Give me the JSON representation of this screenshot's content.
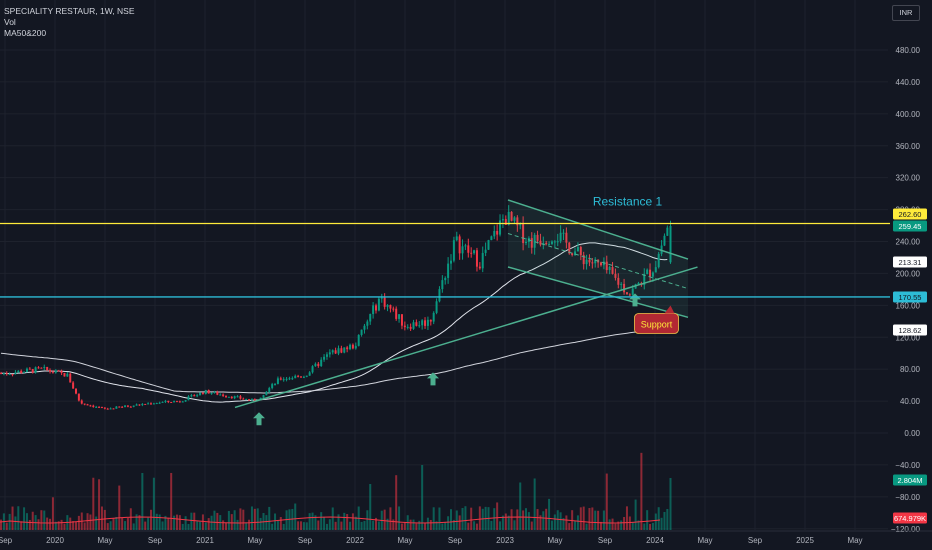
{
  "header": {
    "symbol_line": "SPECIALITY RESTAUR, 1W, NSE",
    "vol_label": "Vol",
    "ma_label": "MA50&200",
    "currency": "INR"
  },
  "chart_data": {
    "type": "candlestick",
    "price_axis": {
      "ticks": [
        "480.00",
        "440.00",
        "400.00",
        "360.00",
        "320.00",
        "280.00",
        "240.00",
        "200.00",
        "160.00",
        "120.00",
        "80.00",
        "40.00",
        "0.00",
        "−40.00",
        "−80.00",
        "−120.00"
      ],
      "range": [
        -120,
        510
      ]
    },
    "time_axis": {
      "ticks": [
        "Sep",
        "2020",
        "May",
        "Sep",
        "2021",
        "May",
        "Sep",
        "2022",
        "May",
        "Sep",
        "2023",
        "May",
        "Sep",
        "2024",
        "May",
        "Sep",
        "2025",
        "May"
      ]
    },
    "price_labels": [
      {
        "value": "262.60",
        "color": "#ffeb3b",
        "text_color": "#131722"
      },
      {
        "value": "259.45",
        "color": "#089981",
        "text_color": "#ffffff"
      },
      {
        "value": "213.31",
        "color": "#ffffff",
        "text_color": "#131722"
      },
      {
        "value": "170.55",
        "color": "#2dbcd6",
        "text_color": "#131722"
      },
      {
        "value": "128.62",
        "color": "#ffffff",
        "text_color": "#131722"
      },
      {
        "value": "2.804M",
        "color": "#089981",
        "text_color": "#ffffff"
      },
      {
        "value": "674.979K",
        "color": "#f23645",
        "text_color": "#ffffff"
      }
    ],
    "horizontal_lines": [
      {
        "name": "resistance-line",
        "value": 262.6,
        "color": "#ffeb3b"
      },
      {
        "name": "support-line",
        "value": 170.55,
        "color": "#2dbcd6"
      }
    ],
    "annotations": {
      "resistance_label": "Resistance 1",
      "support_label": "Support"
    },
    "price_series": [
      {
        "date": "2019-09",
        "close": 75
      },
      {
        "date": "2019-12",
        "close": 80
      },
      {
        "date": "2020-02",
        "close": 72
      },
      {
        "date": "2020-03",
        "close": 38
      },
      {
        "date": "2020-05",
        "close": 30
      },
      {
        "date": "2020-07",
        "close": 34
      },
      {
        "date": "2020-09",
        "close": 38
      },
      {
        "date": "2020-11",
        "close": 40
      },
      {
        "date": "2021-01",
        "close": 52
      },
      {
        "date": "2021-03",
        "close": 46
      },
      {
        "date": "2021-05",
        "close": 40
      },
      {
        "date": "2021-07",
        "close": 68
      },
      {
        "date": "2021-09",
        "close": 72
      },
      {
        "date": "2021-11",
        "close": 100
      },
      {
        "date": "2022-01",
        "close": 110
      },
      {
        "date": "2022-03",
        "close": 170
      },
      {
        "date": "2022-05",
        "close": 135
      },
      {
        "date": "2022-07",
        "close": 140
      },
      {
        "date": "2022-09",
        "close": 240
      },
      {
        "date": "2022-11",
        "close": 215
      },
      {
        "date": "2023-01",
        "close": 272
      },
      {
        "date": "2023-03",
        "close": 240
      },
      {
        "date": "2023-05",
        "close": 250
      },
      {
        "date": "2023-07",
        "close": 222
      },
      {
        "date": "2023-09",
        "close": 205
      },
      {
        "date": "2023-11",
        "close": 175
      },
      {
        "date": "2024-01",
        "close": 210
      },
      {
        "date": "2024-02",
        "close": 259.45
      }
    ],
    "moving_averages": [
      "MA50",
      "MA200"
    ]
  }
}
